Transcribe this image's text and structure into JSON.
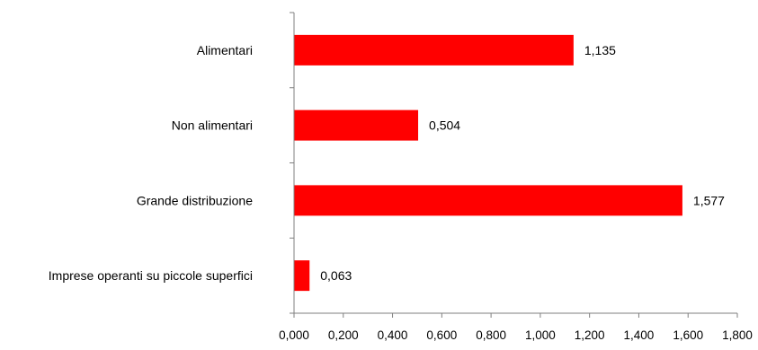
{
  "chart_data": {
    "type": "bar",
    "orientation": "horizontal",
    "title": "",
    "xlabel": "",
    "ylabel": "",
    "categories": [
      "Alimentari",
      "Non alimentari",
      "Grande distribuzione",
      "Imprese operanti su piccole superfici"
    ],
    "values": [
      1.135,
      0.504,
      1.577,
      0.063
    ],
    "value_labels": [
      "1,135",
      "0,504",
      "1,577",
      "0,063"
    ],
    "xlim": [
      0,
      1.8
    ],
    "x_ticks": [
      0,
      0.2,
      0.4,
      0.6,
      0.8,
      1.0,
      1.2,
      1.4,
      1.6,
      1.8
    ],
    "x_tick_labels": [
      "0,000",
      "0,200",
      "0,400",
      "0,600",
      "0,800",
      "1,000",
      "1,200",
      "1,400",
      "1,600",
      "1,800"
    ],
    "grid": false,
    "legend": "none",
    "bar_color": "#ff0000"
  }
}
